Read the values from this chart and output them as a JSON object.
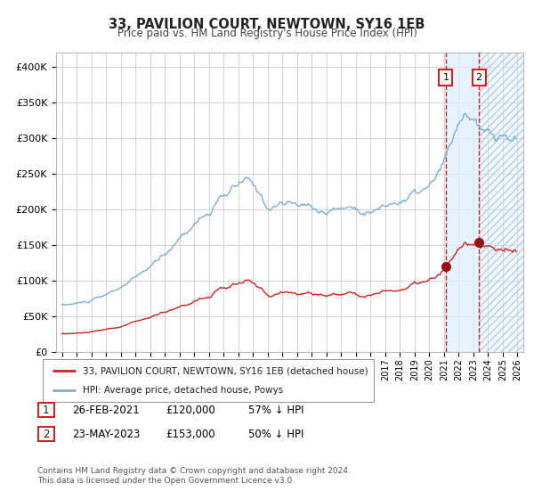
{
  "title": "33, PAVILION COURT, NEWTOWN, SY16 1EB",
  "subtitle": "Price paid vs. HM Land Registry's House Price Index (HPI)",
  "legend_line1": "33, PAVILION COURT, NEWTOWN, SY16 1EB (detached house)",
  "legend_line2": "HPI: Average price, detached house, Powys",
  "annotation1": {
    "label": "1",
    "date_str": "26-FEB-2021",
    "price": "£120,000",
    "pct": "57% ↓ HPI",
    "x_year": 2021.12
  },
  "annotation2": {
    "label": "2",
    "date_str": "23-MAY-2023",
    "price": "£153,000",
    "pct": "50% ↓ HPI",
    "x_year": 2023.38
  },
  "footnote": "Contains HM Land Registry data © Crown copyright and database right 2024.\nThis data is licensed under the Open Government Licence v3.0.",
  "hpi_color": "#7bafd4",
  "price_color": "#cc2222",
  "marker_color": "#991111",
  "grid_color": "#cccccc",
  "shade_color": "#ddeeff",
  "hatch_color": "#bbccdd",
  "ylim": [
    0,
    420000
  ],
  "xlim_start": 1994.6,
  "xlim_end": 2026.4,
  "sale1_x": 2021.12,
  "sale1_y": 120000,
  "sale2_x": 2023.38,
  "sale2_y": 153000
}
